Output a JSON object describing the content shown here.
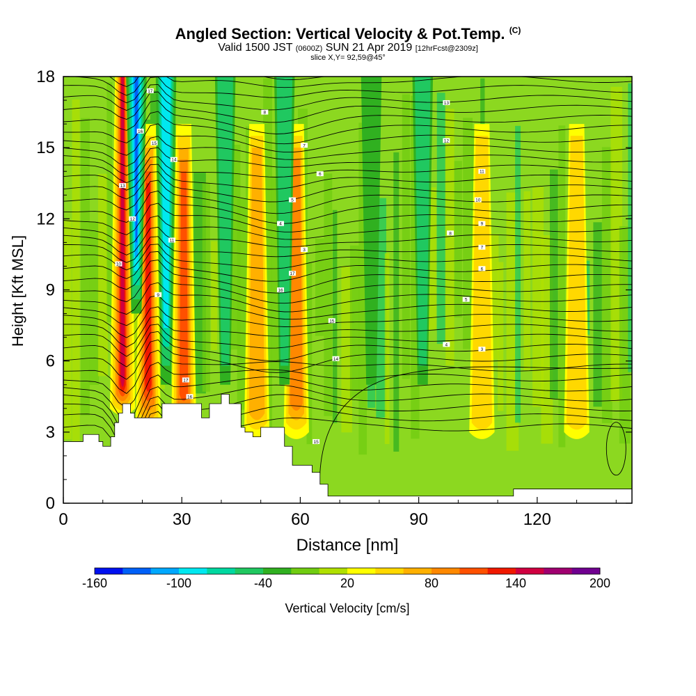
{
  "header": {
    "title": "Angled Section: Vertical Velocity & Pot.Temp.",
    "title_unit": "(C)",
    "valid_prefix": "Valid 1500 JST",
    "valid_zulu": "(0600Z)",
    "valid_date": "SUN 21 Apr 2019",
    "forecast": "[12hrFcst@2309z]",
    "slice": "slice X,Y= 92,59@45°"
  },
  "chart_data": {
    "type": "heatmap",
    "xlabel": "Distance [nm]",
    "ylabel": "Height [Kft MSL]",
    "xlim": [
      0,
      144
    ],
    "ylim": [
      0,
      18
    ],
    "xticks": [
      0,
      30,
      60,
      90,
      120
    ],
    "yticks": [
      0,
      3,
      6,
      9,
      12,
      15,
      18
    ],
    "colorbar": {
      "label": "Vertical Velocity [cm/s]",
      "range": [
        -160,
        200
      ],
      "step": 20,
      "tick_labels": [
        -160,
        -100,
        -40,
        20,
        80,
        140,
        200
      ],
      "colors": [
        "#0010f0",
        "#0060f8",
        "#00a8ff",
        "#00e8f0",
        "#00d8a0",
        "#20c860",
        "#30b020",
        "#70cc10",
        "#b0e000",
        "#ffff00",
        "#ffd800",
        "#ffb000",
        "#ff8800",
        "#ff5000",
        "#f01800",
        "#d00040",
        "#a00070",
        "#700090"
      ]
    },
    "terrain_kft": [
      [
        0,
        2.6
      ],
      [
        5,
        2.9
      ],
      [
        9,
        2.6
      ],
      [
        10,
        2.4
      ],
      [
        12,
        2.8
      ],
      [
        13,
        3.4
      ],
      [
        14,
        3.8
      ],
      [
        15,
        4.2
      ],
      [
        17,
        3.8
      ],
      [
        18,
        3.6
      ],
      [
        23,
        3.6
      ],
      [
        25,
        4.2
      ],
      [
        33,
        4.2
      ],
      [
        35,
        3.6
      ],
      [
        37,
        4.2
      ],
      [
        40,
        4.6
      ],
      [
        42,
        4.2
      ],
      [
        45,
        3.2
      ],
      [
        46,
        3.0
      ],
      [
        48,
        2.8
      ],
      [
        50,
        3.2
      ],
      [
        52,
        3.2
      ],
      [
        56,
        2.4
      ],
      [
        58,
        1.6
      ],
      [
        63,
        1.3
      ],
      [
        65,
        0.8
      ],
      [
        67,
        0.3
      ],
      [
        80,
        0.3
      ],
      [
        100,
        0.3
      ],
      [
        114,
        0.3
      ],
      [
        114,
        0.6
      ],
      [
        140,
        0.6
      ],
      [
        144,
        1.3
      ]
    ],
    "updraft_bands": [
      {
        "x": 15,
        "w": 0.9
      },
      {
        "x": 21.5,
        "w": 0.7
      },
      {
        "x": 30.5,
        "w": 0.6
      },
      {
        "x": 49,
        "w": 0.4
      },
      {
        "x": 59,
        "w": 0.45
      },
      {
        "x": 106,
        "w": 0.2
      },
      {
        "x": 130,
        "w": 0.2
      }
    ],
    "downdraft_bands": [
      {
        "x": 18,
        "w": 0.95
      },
      {
        "x": 26,
        "w": 0.6
      },
      {
        "x": 41,
        "w": 0.3
      },
      {
        "x": 56,
        "w": 0.35
      },
      {
        "x": 78,
        "w": 0.2
      },
      {
        "x": 91,
        "w": 0.25
      }
    ],
    "isentrope_labels": [
      "17",
      "16",
      "15",
      "14",
      "13",
      "12",
      "11",
      "10",
      "9",
      "8",
      "7",
      "6",
      "5",
      "4",
      "3"
    ]
  },
  "colors": {
    "background": "#8cd820",
    "terrain": "#ffffff",
    "contours": "#000000"
  }
}
